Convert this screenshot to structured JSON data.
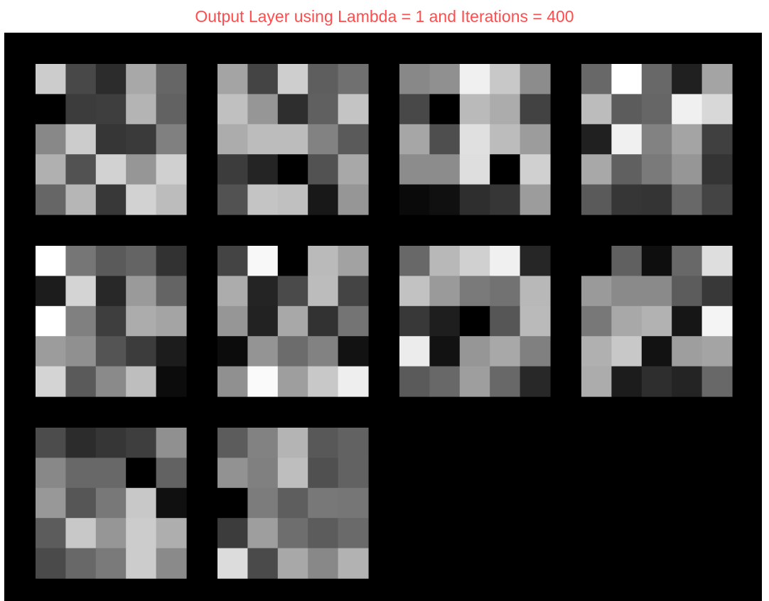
{
  "title": "Output Layer using Lambda = 1 and Iterations = 400",
  "colors": {
    "title": "#ff4d4d",
    "background": "#000000"
  },
  "chart_data": {
    "type": "heatmap",
    "title": "Output Layer using Lambda = 1 and Iterations = 400",
    "colormap": "gray",
    "value_range": [
      0,
      255
    ],
    "grid": false,
    "layout": {
      "rows": 3,
      "columns": 4,
      "panel_rows": 5,
      "panel_columns": 5
    },
    "panels": [
      {
        "values": [
          [
            204,
            72,
            44,
            168,
            102
          ],
          [
            0,
            60,
            62,
            180,
            98
          ],
          [
            136,
            204,
            54,
            58,
            128
          ],
          [
            176,
            82,
            210,
            150,
            208
          ],
          [
            102,
            182,
            56,
            210,
            188
          ]
        ]
      },
      {
        "values": [
          [
            164,
            68,
            206,
            94,
            112
          ],
          [
            192,
            150,
            46,
            96,
            196
          ],
          [
            172,
            188,
            188,
            130,
            90
          ],
          [
            60,
            36,
            0,
            82,
            168
          ],
          [
            82,
            196,
            192,
            24,
            150
          ]
        ]
      },
      {
        "values": [
          [
            136,
            144,
            240,
            200,
            140
          ],
          [
            72,
            0,
            186,
            172,
            66
          ],
          [
            166,
            78,
            224,
            188,
            156
          ],
          [
            140,
            140,
            222,
            0,
            208
          ],
          [
            10,
            16,
            46,
            54,
            156
          ]
        ]
      },
      {
        "values": [
          [
            104,
            255,
            104,
            32,
            164
          ],
          [
            188,
            92,
            102,
            240,
            216
          ],
          [
            32,
            240,
            130,
            164,
            64
          ],
          [
            168,
            96,
            122,
            150,
            52
          ],
          [
            90,
            54,
            52,
            104,
            68
          ]
        ]
      },
      {
        "values": [
          [
            255,
            118,
            90,
            100,
            50
          ],
          [
            28,
            212,
            40,
            154,
            100
          ],
          [
            255,
            128,
            62,
            172,
            164
          ],
          [
            156,
            144,
            84,
            60,
            28
          ],
          [
            212,
            90,
            138,
            190,
            12
          ]
        ]
      },
      {
        "values": [
          [
            68,
            248,
            0,
            186,
            162
          ],
          [
            172,
            36,
            74,
            188,
            68
          ],
          [
            150,
            34,
            168,
            50,
            116
          ],
          [
            12,
            148,
            108,
            130,
            18
          ],
          [
            144,
            250,
            158,
            200,
            238
          ]
        ]
      },
      {
        "values": [
          [
            104,
            184,
            208,
            240,
            38
          ],
          [
            194,
            154,
            122,
            114,
            184
          ],
          [
            56,
            30,
            0,
            86,
            186
          ],
          [
            236,
            18,
            150,
            168,
            128
          ],
          [
            90,
            104,
            158,
            104,
            40
          ]
        ]
      },
      {
        "values": [
          [
            0,
            96,
            14,
            104,
            222
          ],
          [
            154,
            138,
            138,
            92,
            56
          ],
          [
            120,
            168,
            178,
            22,
            244
          ],
          [
            176,
            200,
            18,
            158,
            164
          ],
          [
            172,
            28,
            46,
            36,
            104
          ]
        ]
      },
      {
        "values": [
          [
            76,
            44,
            54,
            62,
            144
          ],
          [
            136,
            104,
            104,
            0,
            98
          ],
          [
            152,
            86,
            120,
            200,
            16
          ],
          [
            92,
            200,
            150,
            204,
            174
          ],
          [
            74,
            104,
            122,
            204,
            138
          ]
        ]
      },
      {
        "values": [
          [
            92,
            130,
            180,
            88,
            98
          ],
          [
            146,
            128,
            190,
            80,
            98
          ],
          [
            0,
            124,
            94,
            120,
            118
          ],
          [
            60,
            158,
            110,
            92,
            106
          ],
          [
            220,
            74,
            168,
            136,
            178
          ]
        ]
      }
    ]
  }
}
